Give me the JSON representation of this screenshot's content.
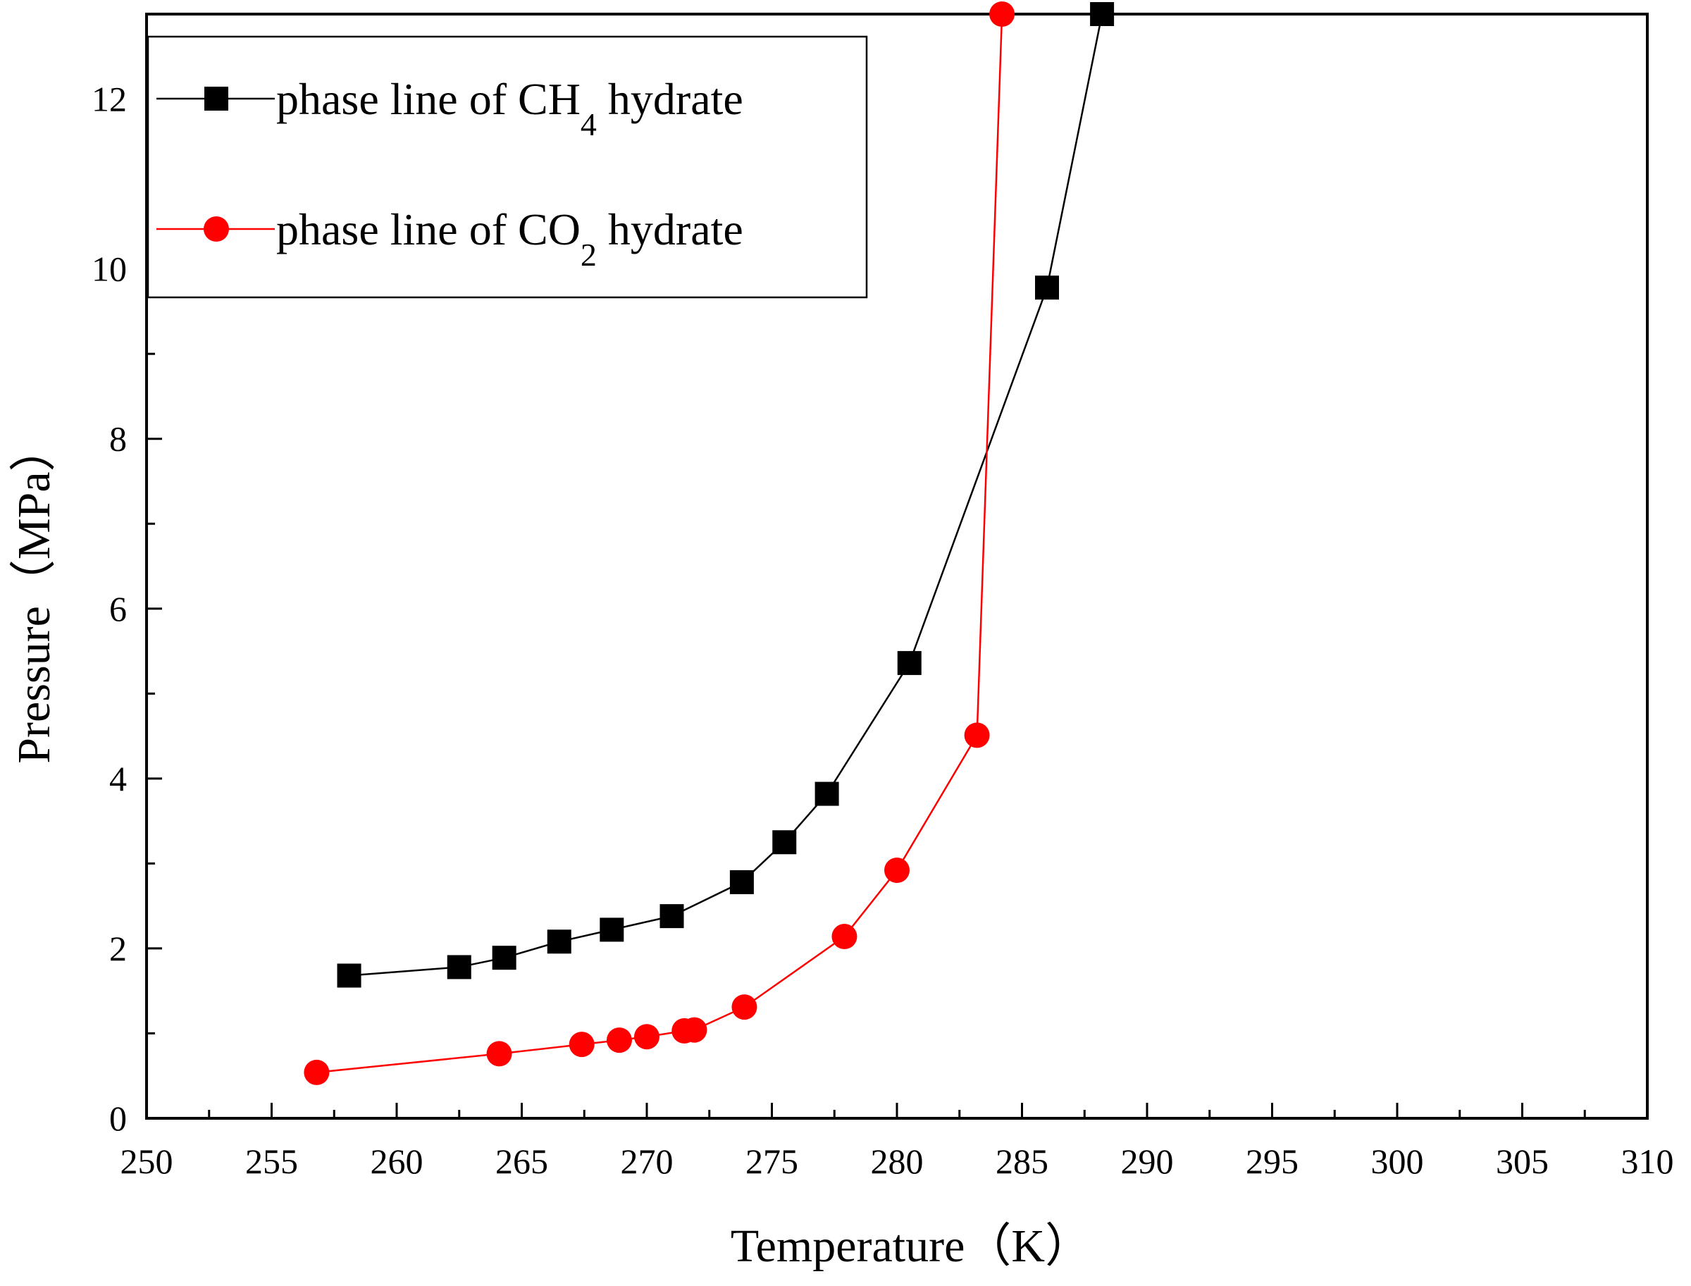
{
  "chart_data": {
    "type": "line",
    "title": "",
    "xlabel": "Temperature（K）",
    "ylabel": "Pressure（MPa）",
    "xlim": [
      250,
      310
    ],
    "ylim": [
      0,
      13
    ],
    "xticks": [
      250,
      255,
      260,
      265,
      270,
      275,
      280,
      285,
      290,
      295,
      300,
      305,
      310
    ],
    "yticks": [
      0,
      2,
      4,
      6,
      8,
      10,
      12
    ],
    "grid": false,
    "legend_position": "top-left",
    "series": [
      {
        "name": "phase line of CH4 hydrate",
        "legend_main": "phase line of CH",
        "legend_sub": "4",
        "legend_tail": " hydrate",
        "color": "#000000",
        "marker": "square",
        "x": [
          258.1,
          262.5,
          264.3,
          266.5,
          268.6,
          271.0,
          273.8,
          275.5,
          277.2,
          280.5,
          286.0,
          288.2
        ],
        "y": [
          1.68,
          1.78,
          1.89,
          2.08,
          2.22,
          2.38,
          2.78,
          3.25,
          3.82,
          5.36,
          9.78,
          13.0
        ]
      },
      {
        "name": "phase line of CO2 hydrate",
        "legend_main": "phase line of CO",
        "legend_sub": "2",
        "legend_tail": " hydrate",
        "color": "#ff0000",
        "marker": "circle",
        "x": [
          256.8,
          264.1,
          267.4,
          268.9,
          270.0,
          271.5,
          271.9,
          273.9,
          277.9,
          280.0,
          283.2,
          284.2
        ],
        "y": [
          0.54,
          0.76,
          0.87,
          0.92,
          0.96,
          1.03,
          1.04,
          1.31,
          2.14,
          2.92,
          4.51,
          13.0
        ]
      }
    ]
  }
}
